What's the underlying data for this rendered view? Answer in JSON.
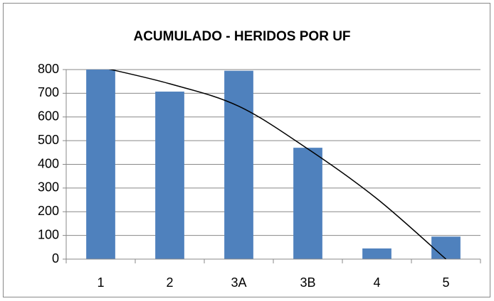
{
  "chart_data": {
    "type": "bar",
    "title": "ACUMULADO - HERIDOS POR  UF",
    "categories": [
      "1",
      "2",
      "3A",
      "3B",
      "4",
      "5"
    ],
    "values": [
      800,
      707,
      795,
      470,
      45,
      95
    ],
    "color": "#4f81bd",
    "trendline": {
      "color": "#000000",
      "values": [
        810,
        740,
        645,
        465,
        255,
        0
      ]
    },
    "ylim": [
      0,
      800
    ],
    "yticks": [
      0,
      100,
      200,
      300,
      400,
      500,
      600,
      700,
      800
    ],
    "grid": true
  }
}
